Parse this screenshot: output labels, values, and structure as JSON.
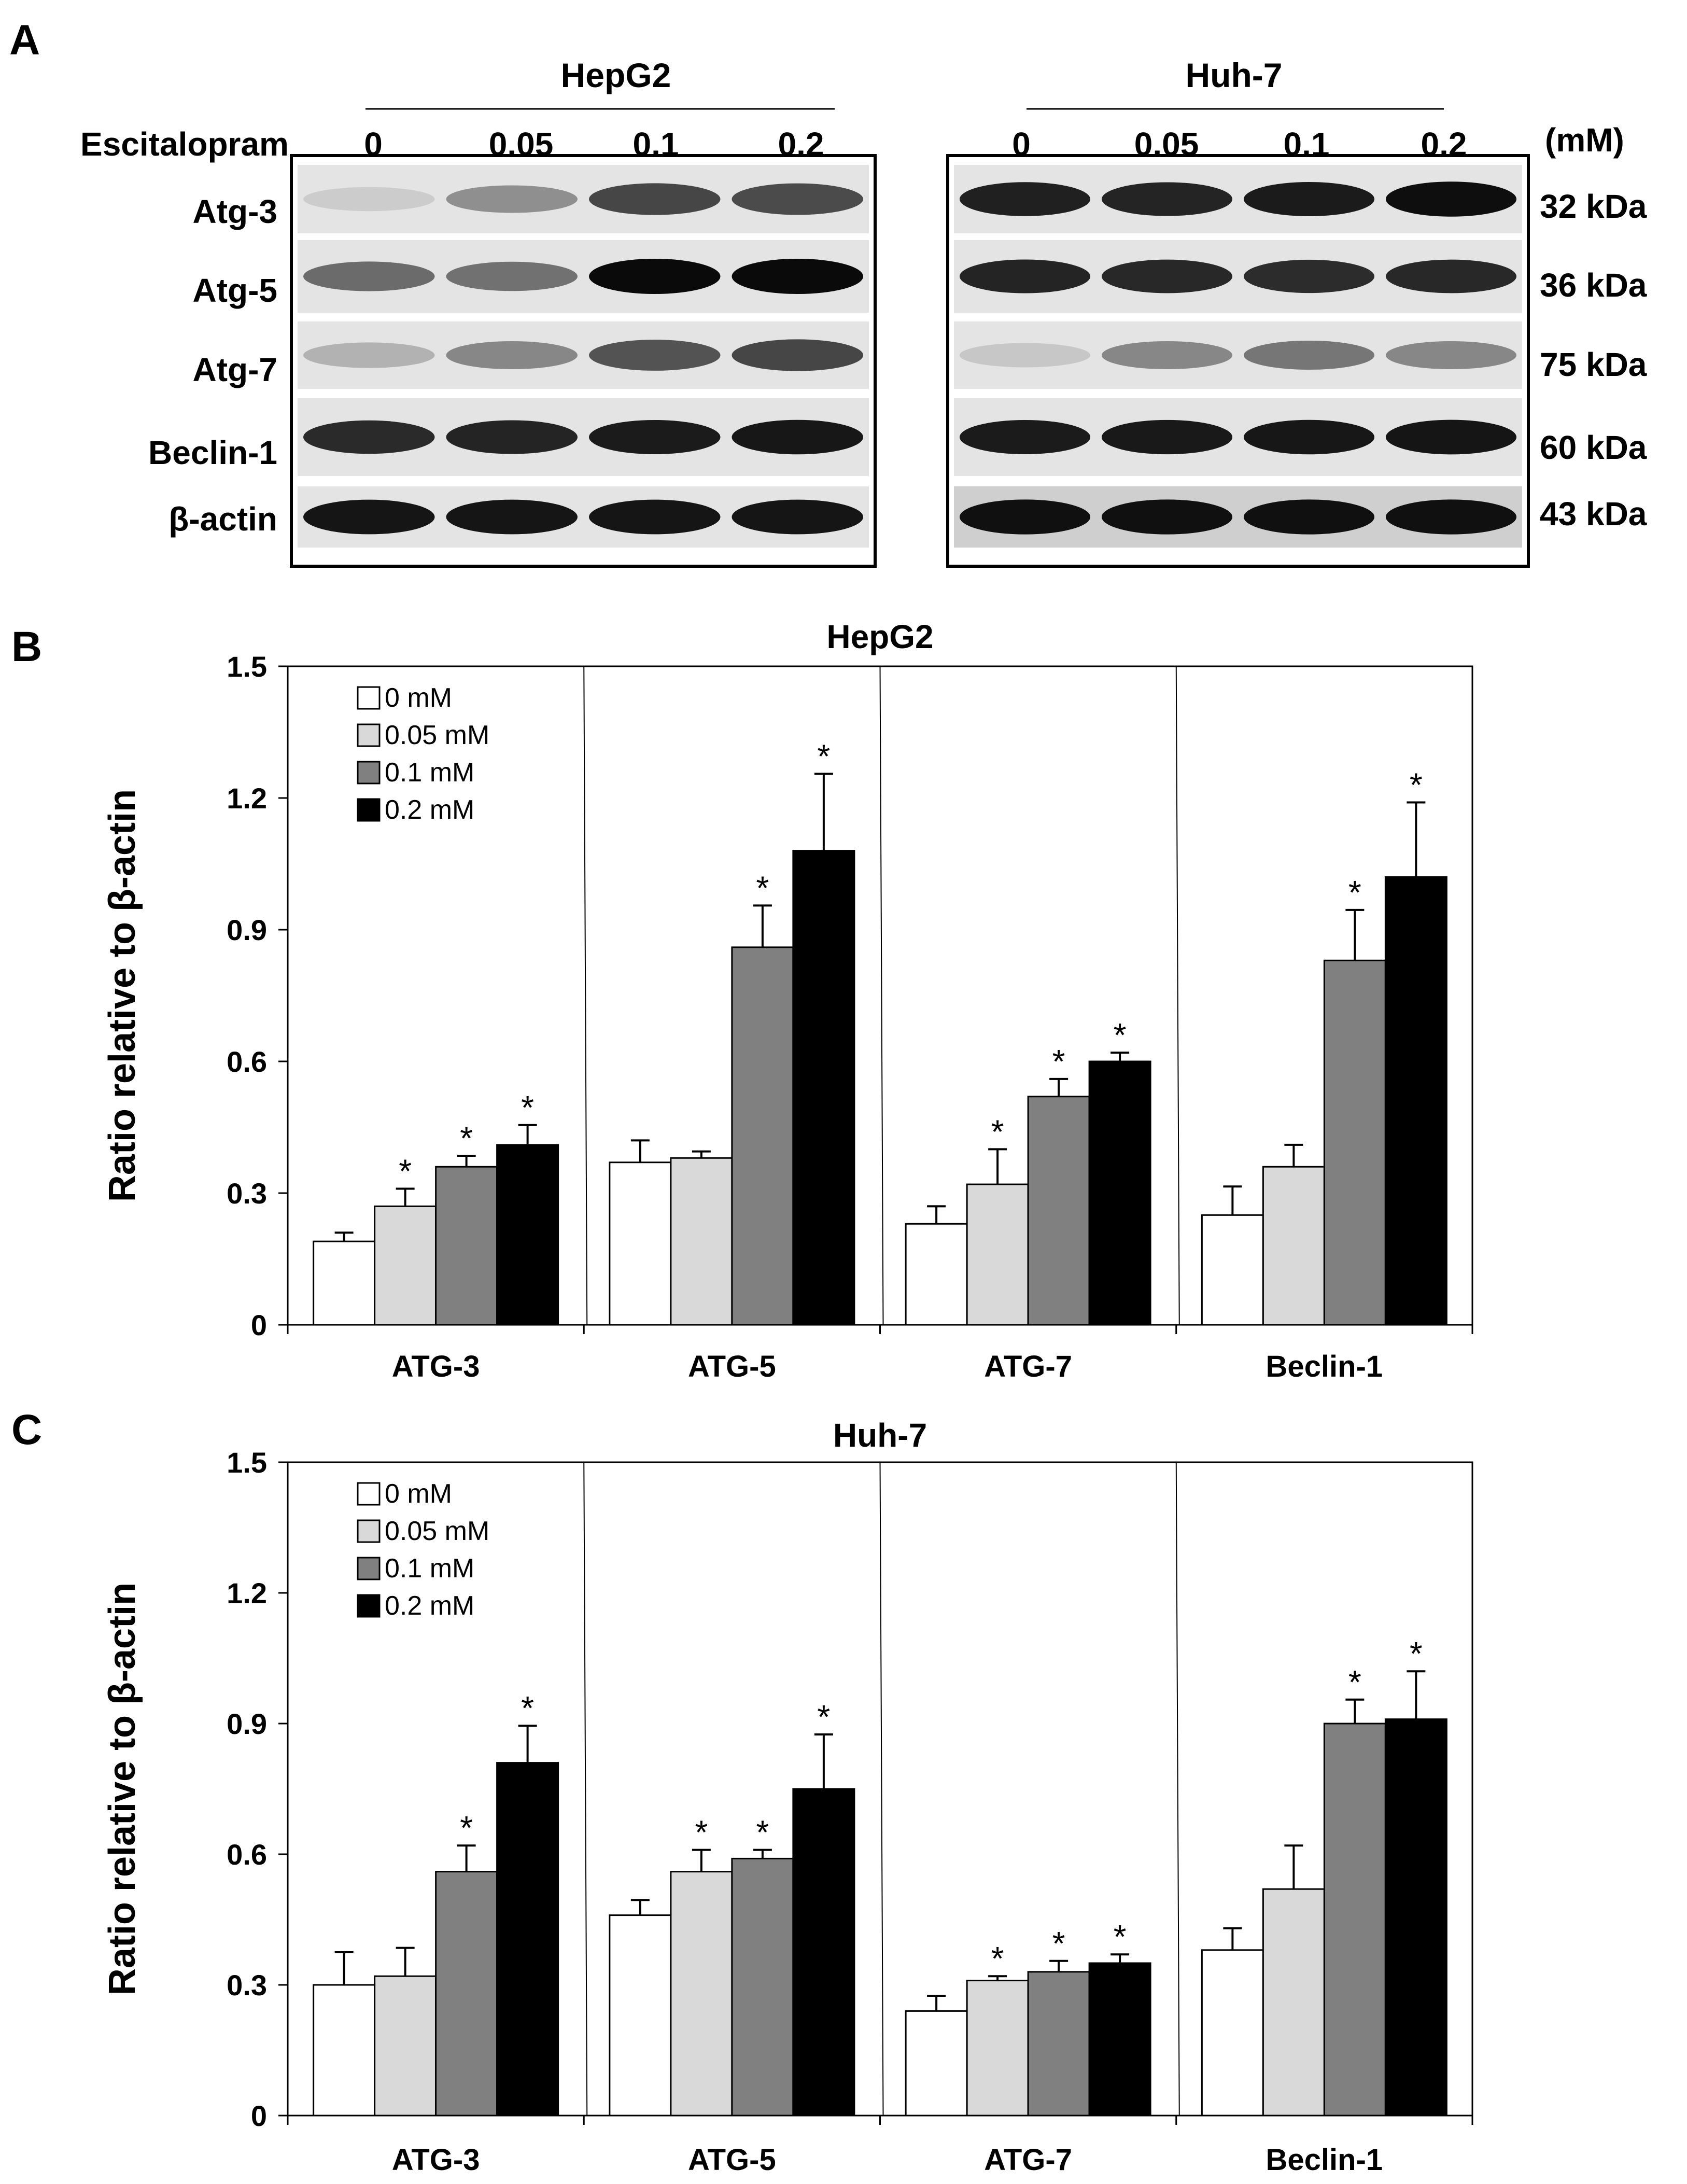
{
  "panel_a": {
    "label": "A",
    "treatment_label": "Escitalopram",
    "unit": "(mM)",
    "doses": [
      "0",
      "0.05",
      "0.1",
      "0.2"
    ],
    "rows": [
      "Atg-3",
      "Atg-5",
      "Atg-7",
      "Beclin-1",
      "β-actin"
    ],
    "sizes": [
      "32 kDa",
      "36 kDa",
      "75 kDa",
      "60 kDa",
      "43 kDa"
    ],
    "blots": [
      {
        "cell_line": "HepG2",
        "band_intensity": [
          [
            0.1,
            0.38,
            0.72,
            0.7
          ],
          [
            0.55,
            0.52,
            1.0,
            1.0
          ],
          [
            0.22,
            0.42,
            0.66,
            0.72
          ],
          [
            0.85,
            0.88,
            0.92,
            0.94
          ],
          [
            0.95,
            0.95,
            0.95,
            0.95
          ]
        ]
      },
      {
        "cell_line": "Huh-7",
        "band_intensity": [
          [
            0.9,
            0.88,
            0.92,
            0.98
          ],
          [
            0.88,
            0.86,
            0.84,
            0.86
          ],
          [
            0.12,
            0.42,
            0.5,
            0.42
          ],
          [
            0.92,
            0.93,
            0.94,
            0.95
          ],
          [
            0.97,
            0.97,
            0.97,
            0.97
          ]
        ]
      }
    ]
  },
  "colors": {
    "s0": "#ffffff",
    "s1": "#d9d9d9",
    "s2": "#808080",
    "s3": "#000000"
  },
  "chart_data": [
    {
      "panel_label": "B",
      "type": "bar",
      "title": "HepG2",
      "xlabel": "",
      "ylabel": "Ratio relative to β-actin",
      "ylim": [
        0,
        1.5
      ],
      "yticks": [
        0,
        0.3,
        0.6,
        0.9,
        1.2,
        1.5
      ],
      "ytick_labels": [
        "0",
        "0.3",
        "0.6",
        "0.9",
        "1.2",
        "1.5"
      ],
      "categories": [
        "ATG-3",
        "ATG-5",
        "ATG-7",
        "Beclin-1"
      ],
      "legend_position": "top-left",
      "series": [
        {
          "name": "0 mM",
          "color": "#ffffff",
          "values": [
            0.19,
            0.37,
            0.23,
            0.25
          ],
          "errors": [
            0.02,
            0.05,
            0.04,
            0.065
          ],
          "sig": [
            "",
            "",
            "",
            ""
          ]
        },
        {
          "name": "0.05 mM",
          "color": "#d9d9d9",
          "values": [
            0.27,
            0.38,
            0.32,
            0.36
          ],
          "errors": [
            0.04,
            0.015,
            0.08,
            0.05
          ],
          "sig": [
            "*",
            "",
            "*",
            ""
          ]
        },
        {
          "name": "0.1 mM",
          "color": "#808080",
          "values": [
            0.36,
            0.86,
            0.52,
            0.83
          ],
          "errors": [
            0.025,
            0.095,
            0.04,
            0.115
          ],
          "sig": [
            "*",
            "*",
            "*",
            "*"
          ]
        },
        {
          "name": "0.2 mM",
          "color": "#000000",
          "values": [
            0.41,
            1.08,
            0.6,
            1.02
          ],
          "errors": [
            0.045,
            0.175,
            0.02,
            0.17
          ],
          "sig": [
            "*",
            "*",
            "*",
            "*"
          ]
        }
      ]
    },
    {
      "panel_label": "C",
      "type": "bar",
      "title": "Huh-7",
      "xlabel": "",
      "ylabel": "Ratio relative to β-actin",
      "ylim": [
        0,
        1.5
      ],
      "yticks": [
        0,
        0.3,
        0.6,
        0.9,
        1.2,
        1.5
      ],
      "ytick_labels": [
        "0",
        "0.3",
        "0.6",
        "0.9",
        "1.2",
        "1.5"
      ],
      "categories": [
        "ATG-3",
        "ATG-5",
        "ATG-7",
        "Beclin-1"
      ],
      "legend_position": "top-left",
      "series": [
        {
          "name": "0 mM",
          "color": "#ffffff",
          "values": [
            0.3,
            0.46,
            0.24,
            0.38
          ],
          "errors": [
            0.075,
            0.035,
            0.035,
            0.05
          ],
          "sig": [
            "",
            "",
            "",
            ""
          ]
        },
        {
          "name": "0.05 mM",
          "color": "#d9d9d9",
          "values": [
            0.32,
            0.56,
            0.31,
            0.52
          ],
          "errors": [
            0.065,
            0.05,
            0.01,
            0.1
          ],
          "sig": [
            "",
            "*",
            "*",
            ""
          ]
        },
        {
          "name": "0.1 mM",
          "color": "#808080",
          "values": [
            0.56,
            0.59,
            0.33,
            0.9
          ],
          "errors": [
            0.06,
            0.02,
            0.025,
            0.055
          ],
          "sig": [
            "*",
            "*",
            "*",
            "*"
          ]
        },
        {
          "name": "0.2 mM",
          "color": "#000000",
          "values": [
            0.81,
            0.75,
            0.35,
            0.91
          ],
          "errors": [
            0.085,
            0.125,
            0.02,
            0.11
          ],
          "sig": [
            "*",
            "*",
            "*",
            "*"
          ]
        }
      ]
    }
  ]
}
